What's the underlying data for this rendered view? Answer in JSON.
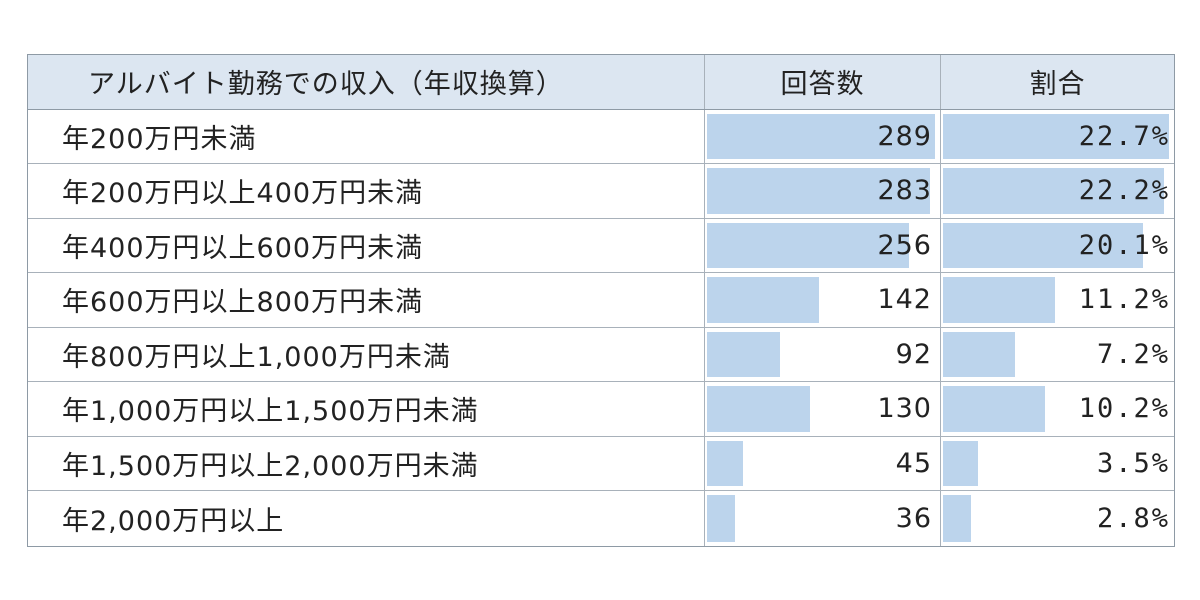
{
  "table": {
    "headers": {
      "label": "アルバイト勤務での収入（年収換算）",
      "count": "回答数",
      "ratio": "割合"
    },
    "max_count": 289,
    "max_ratio": 22.7,
    "bar_color": "#bcd4ec",
    "header_bg": "#dce6f1",
    "rows": [
      {
        "label": "年200万円未満",
        "count": 289,
        "count_text": "289",
        "ratio": 22.7,
        "ratio_text": "22.7%"
      },
      {
        "label": "年200万円以上400万円未満",
        "count": 283,
        "count_text": "283",
        "ratio": 22.2,
        "ratio_text": "22.2%"
      },
      {
        "label": "年400万円以上600万円未満",
        "count": 256,
        "count_text": "256",
        "ratio": 20.1,
        "ratio_text": "20.1%"
      },
      {
        "label": "年600万円以上800万円未満",
        "count": 142,
        "count_text": "142",
        "ratio": 11.2,
        "ratio_text": "11.2%"
      },
      {
        "label": "年800万円以上1,000万円未満",
        "count": 92,
        "count_text": "92",
        "ratio": 7.2,
        "ratio_text": "7.2%"
      },
      {
        "label": "年1,000万円以上1,500万円未満",
        "count": 130,
        "count_text": "130",
        "ratio": 10.2,
        "ratio_text": "10.2%"
      },
      {
        "label": "年1,500万円以上2,000万円未満",
        "count": 45,
        "count_text": "45",
        "ratio": 3.5,
        "ratio_text": "3.5%"
      },
      {
        "label": "年2,000万円以上",
        "count": 36,
        "count_text": "36",
        "ratio": 2.8,
        "ratio_text": "2.8%"
      }
    ]
  }
}
